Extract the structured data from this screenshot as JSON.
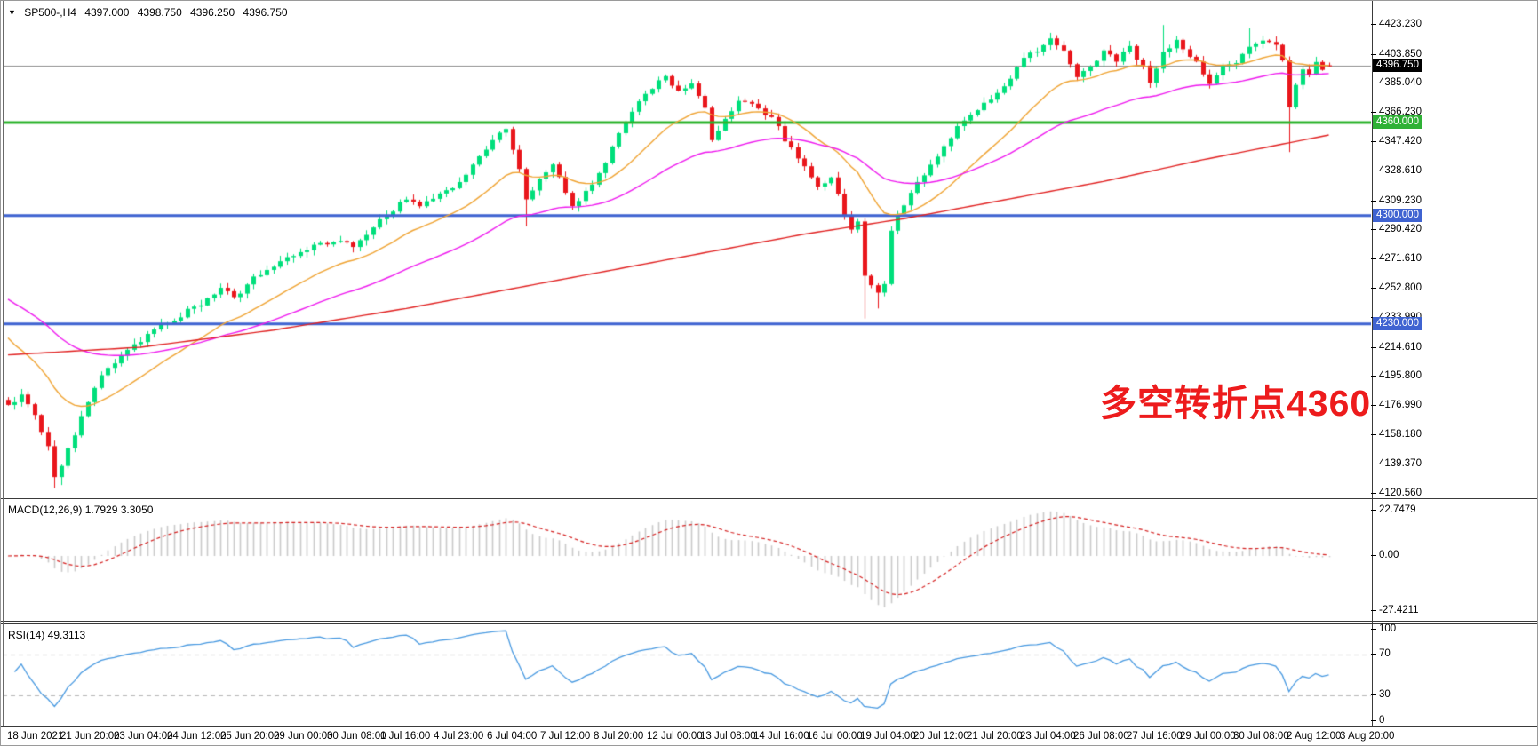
{
  "quote": {
    "expander": "▼",
    "symbol": "SP500-,H4",
    "open": "4397.000",
    "high": "4398.750",
    "low": "4396.250",
    "close": "4396.750"
  },
  "annotation": {
    "text": "多空转折点4360",
    "color": "#ed1b1c"
  },
  "main_axis": {
    "tick_labels": [
      "4423.230",
      "4403.850",
      "4385.040",
      "4366.230",
      "4347.420",
      "4328.610",
      "4309.230",
      "4290.420",
      "4271.610",
      "4252.800",
      "4233.990",
      "4214.610",
      "4195.800",
      "4176.990",
      "4158.180",
      "4139.370",
      "4120.560"
    ],
    "badges": [
      {
        "text": "4396.750",
        "price": 4396.75,
        "bg": "#000000"
      },
      {
        "text": "4360.000",
        "price": 4360.0,
        "bg": "#2fb136"
      },
      {
        "text": "4300.000",
        "price": 4300.0,
        "bg": "#3f63d1"
      },
      {
        "text": "4230.000",
        "price": 4230.0,
        "bg": "#3f63d1"
      }
    ]
  },
  "macd_panel": {
    "label": "MACD(12,26,9) 1.7929 3.3050",
    "axis_labels": [
      {
        "text": "22.7479",
        "value": 22.7479
      },
      {
        "text": "0.00",
        "value": 0
      },
      {
        "text": "-27.4211",
        "value": -27.4211
      }
    ]
  },
  "rsi_panel": {
    "label": "RSI(14) 49.3113",
    "axis_labels": [
      {
        "text": "100",
        "value": 100
      },
      {
        "text": "70",
        "value": 70
      },
      {
        "text": "30",
        "value": 30
      },
      {
        "text": "0",
        "value": 0
      }
    ]
  },
  "time_axis": {
    "labels": [
      "18 Jun 2021",
      "21 Jun 20:00",
      "23 Jun 04:00",
      "24 Jun 12:00",
      "25 Jun 20:00",
      "29 Jun 00:00",
      "30 Jun 08:00",
      "1 Jul 16:00",
      "4 Jul 23:00",
      "6 Jul 04:00",
      "7 Jul 12:00",
      "8 Jul 20:00",
      "12 Jul 00:00",
      "13 Jul 08:00",
      "14 Jul 16:00",
      "16 Jul 00:00",
      "19 Jul 04:00",
      "20 Jul 12:00",
      "21 Jul 20:00",
      "23 Jul 04:00",
      "26 Jul 08:00",
      "27 Jul 16:00",
      "29 Jul 00:00",
      "30 Jul 08:00",
      "2 Aug 12:00",
      "3 Aug 20:00"
    ]
  },
  "chart_data": {
    "type": "candlestick",
    "symbol": "SP500-",
    "timeframe": "H4",
    "bars": 200,
    "visible_price_range": [
      4119.2,
      4438.6
    ],
    "current_price": 4396.75,
    "last_bar": {
      "open": 4397.0,
      "high": 4398.75,
      "low": 4396.25,
      "close": 4396.75
    },
    "colors": {
      "bull": "#00df7b",
      "bear": "#e9161c",
      "line_green": "#2db32d",
      "line_blue": "#3f63d1",
      "line_current": "#8a8a8a",
      "ma_fast": "#efa332",
      "ma_mid": "#ee18ee",
      "ma_slow": "#e01f1f",
      "macd_hist": "#c9c9c9",
      "macd_signal": "#d42020",
      "rsi_line": "#4698e0",
      "rsi_levels": "#b5b5b5"
    },
    "hlines": [
      {
        "price": 4396.75,
        "color": "#8a8a8a",
        "width": 1,
        "role": "current-price"
      },
      {
        "price": 4360.0,
        "color": "#2db32d",
        "width": 3,
        "role": "pivot-level"
      },
      {
        "price": 4300.0,
        "color": "#3f63d1",
        "width": 3,
        "role": "support-level"
      },
      {
        "price": 4230.0,
        "color": "#3f63d1",
        "width": 3,
        "role": "support-level"
      }
    ],
    "close_anchors": [
      [
        0,
        4178
      ],
      [
        2,
        4183
      ],
      [
        4,
        4172
      ],
      [
        6,
        4150
      ],
      [
        7,
        4131
      ],
      [
        9,
        4148
      ],
      [
        11,
        4170
      ],
      [
        13,
        4190
      ],
      [
        15,
        4202
      ],
      [
        17,
        4210
      ],
      [
        20,
        4220
      ],
      [
        24,
        4231
      ],
      [
        28,
        4241
      ],
      [
        32,
        4252
      ],
      [
        34,
        4247
      ],
      [
        38,
        4263
      ],
      [
        42,
        4273
      ],
      [
        46,
        4280
      ],
      [
        50,
        4284
      ],
      [
        52,
        4278
      ],
      [
        55,
        4292
      ],
      [
        58,
        4304
      ],
      [
        60,
        4311
      ],
      [
        62,
        4306
      ],
      [
        65,
        4313
      ],
      [
        68,
        4322
      ],
      [
        71,
        4338
      ],
      [
        73,
        4350
      ],
      [
        75,
        4355
      ],
      [
        77,
        4330
      ],
      [
        78,
        4310
      ],
      [
        80,
        4324
      ],
      [
        82,
        4333
      ],
      [
        85,
        4305
      ],
      [
        87,
        4316
      ],
      [
        89,
        4326
      ],
      [
        91,
        4343
      ],
      [
        93,
        4362
      ],
      [
        95,
        4375
      ],
      [
        97,
        4383
      ],
      [
        99,
        4391
      ],
      [
        101,
        4379
      ],
      [
        103,
        4387
      ],
      [
        105,
        4369
      ],
      [
        106,
        4349
      ],
      [
        108,
        4363
      ],
      [
        110,
        4375
      ],
      [
        112,
        4372
      ],
      [
        115,
        4363
      ],
      [
        118,
        4343
      ],
      [
        120,
        4332
      ],
      [
        122,
        4317
      ],
      [
        124,
        4325
      ],
      [
        126,
        4301
      ],
      [
        127,
        4290
      ],
      [
        128,
        4296
      ],
      [
        129,
        4262
      ],
      [
        131,
        4250
      ],
      [
        132,
        4255
      ],
      [
        133,
        4292
      ],
      [
        136,
        4315
      ],
      [
        139,
        4333
      ],
      [
        143,
        4358
      ],
      [
        146,
        4368
      ],
      [
        149,
        4378
      ],
      [
        151,
        4390
      ],
      [
        153,
        4403
      ],
      [
        155,
        4407
      ],
      [
        157,
        4415
      ],
      [
        159,
        4405
      ],
      [
        161,
        4388
      ],
      [
        163,
        4396
      ],
      [
        165,
        4405
      ],
      [
        167,
        4400
      ],
      [
        169,
        4409
      ],
      [
        171,
        4396
      ],
      [
        172,
        4385
      ],
      [
        174,
        4405
      ],
      [
        176,
        4413
      ],
      [
        178,
        4404
      ],
      [
        181,
        4386
      ],
      [
        183,
        4395
      ],
      [
        185,
        4399
      ],
      [
        187,
        4408
      ],
      [
        189,
        4413
      ],
      [
        191,
        4409
      ],
      [
        192,
        4399
      ],
      [
        193,
        4370
      ],
      [
        194,
        4386
      ],
      [
        195,
        4393
      ],
      [
        196,
        4391
      ],
      [
        197,
        4398
      ],
      [
        198,
        4393
      ],
      [
        199,
        4396.75
      ]
    ],
    "wick_lows": [
      [
        7,
        4124
      ],
      [
        8,
        4126
      ],
      [
        78,
        4293
      ],
      [
        129,
        4233.5
      ],
      [
        131,
        4240
      ],
      [
        193,
        4341
      ]
    ],
    "wick_highs": [
      [
        157,
        4418
      ],
      [
        174,
        4423
      ],
      [
        187,
        4421
      ]
    ],
    "moving_averages": [
      {
        "name": "fast",
        "color": "#efa332",
        "type": "ema",
        "period": 18,
        "seed": 4226
      },
      {
        "name": "medium",
        "color": "#ee18ee",
        "type": "ema",
        "period": 46,
        "seed": 4249
      },
      {
        "name": "slow",
        "color": "#e01f1f",
        "type": "anchored",
        "anchors": [
          [
            0,
            4210
          ],
          [
            20,
            4215
          ],
          [
            40,
            4226
          ],
          [
            60,
            4240
          ],
          [
            80,
            4256
          ],
          [
            100,
            4272
          ],
          [
            120,
            4288
          ],
          [
            135,
            4298
          ],
          [
            150,
            4310
          ],
          [
            165,
            4322
          ],
          [
            180,
            4336
          ],
          [
            199,
            4352
          ]
        ]
      }
    ],
    "macd": {
      "fast": 12,
      "slow": 26,
      "signal": 9,
      "current_values": [
        1.7929,
        3.305
      ],
      "axis_range": [
        -27.4211,
        22.7479
      ]
    },
    "rsi": {
      "period": 14,
      "current_value": 49.3113,
      "levels": [
        70,
        30
      ],
      "axis_range": [
        0,
        100
      ]
    }
  }
}
